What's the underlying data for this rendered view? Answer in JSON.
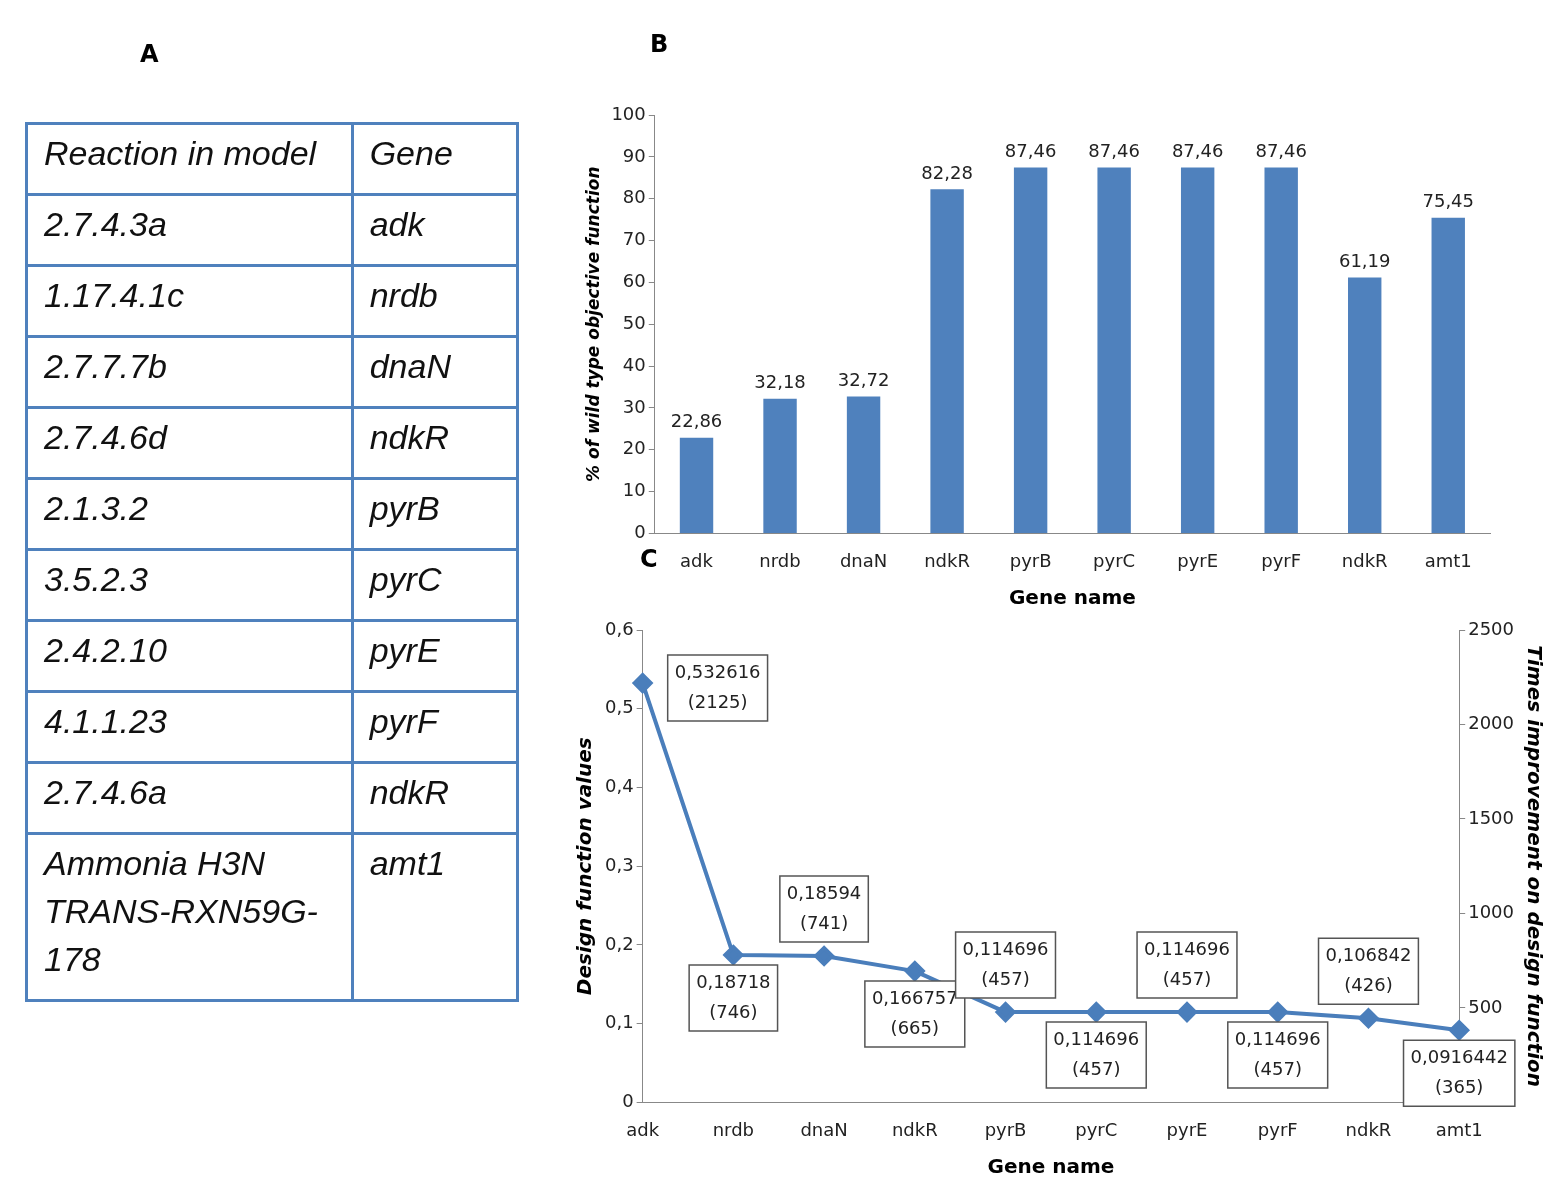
{
  "chart_data": [
    {
      "type": "other",
      "title": "A",
      "annotations": [
        "Reaction in model",
        "Gene",
        "2.7.4.3a",
        "adk",
        "1.17.4.1c",
        "nrdb",
        "2.7.7.7b",
        "dnaN",
        "2.7.4.6d",
        "ndkR",
        "2.1.3.2",
        "pyrB",
        "3.5.2.3",
        "pyrC",
        "2.4.2.10",
        "pyrE",
        "4.1.1.23",
        "pyrF",
        "2.7.4.6a",
        "ndkR",
        "Ammonia H3N TRANS-RXN59G-178",
        "amt1"
      ]
    },
    {
      "type": "bar",
      "title": "B",
      "xlabel": "Gene name",
      "ylabel": "% of wild type objective function",
      "categories": [
        "adk",
        "nrdb",
        "dnaN",
        "ndkR",
        "pyrB",
        "pyrC",
        "pyrE",
        "pyrF",
        "ndkR",
        "amt1"
      ],
      "values": [
        22.86,
        32.18,
        32.72,
        82.28,
        87.46,
        87.46,
        87.46,
        87.46,
        61.19,
        75.45
      ],
      "value_labels": [
        "22,86",
        "32,18",
        "32,72",
        "82,28",
        "87,46",
        "87,46",
        "87,46",
        "87,46",
        "61,19",
        "75,45"
      ],
      "color": "#4f81bd",
      "ylim": [
        0,
        100
      ],
      "yticks": [
        0,
        10,
        20,
        30,
        40,
        50,
        60,
        70,
        80,
        90,
        100
      ],
      "grid": false,
      "legend": false
    },
    {
      "type": "line",
      "title": "C",
      "xlabel": "Gene name",
      "ylabel": "Design function values",
      "y2label": "Times improvement on design function",
      "categories": [
        "adk",
        "nrdb",
        "dnaN",
        "ndkR",
        "pyrB",
        "pyrC",
        "pyrE",
        "pyrF",
        "ndkR",
        "amt1"
      ],
      "values": [
        0.532616,
        0.18718,
        0.18594,
        0.166757,
        0.114696,
        0.114696,
        0.114696,
        0.114696,
        0.106842,
        0.0916442
      ],
      "value_labels": [
        "0,532616 (2125)",
        "0,18718 (746)",
        "0,18594 (741)",
        "0,166757 (665)",
        "0,114696 (457)",
        "0,114696 (457)",
        "0,114696 (457)",
        "0,114696 (457)",
        "0,106842 (426)",
        "0,0916442 (365)"
      ],
      "color": "#4a7ebb",
      "marker": "diamond",
      "line_style": "solid",
      "ylim": [
        0,
        0.6
      ],
      "yticks": [
        0,
        {
          "value": 0.1,
          "label": "0,1"
        },
        {
          "value": 0.2,
          "label": "0,2"
        },
        {
          "value": 0.3,
          "label": "0,3"
        },
        {
          "value": 0.4,
          "label": "0,4"
        },
        {
          "value": 0.5,
          "label": "0,5"
        },
        {
          "value": 0.6,
          "label": "0,6"
        }
      ],
      "y2lim": [
        0,
        2500
      ],
      "y2ticks": [
        500,
        1000,
        1500,
        2000,
        2500
      ],
      "grid": false,
      "legend": false
    }
  ]
}
